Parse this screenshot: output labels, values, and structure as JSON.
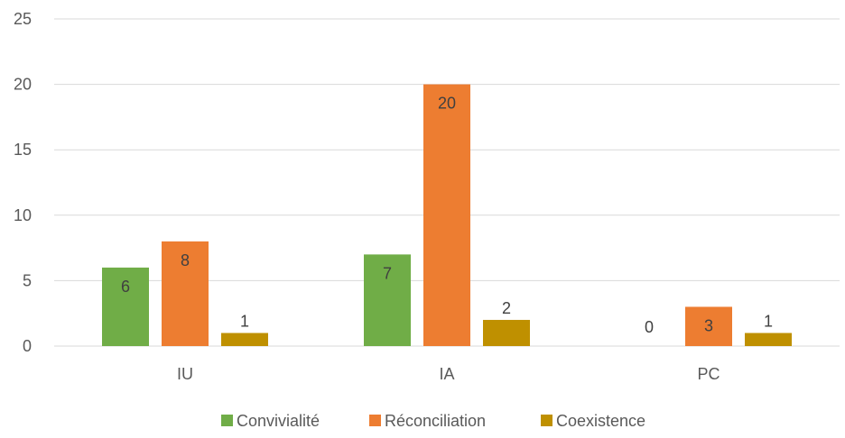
{
  "chart_data": {
    "type": "bar",
    "categories": [
      "IU",
      "IA",
      "PC"
    ],
    "series": [
      {
        "name": "Convivialité",
        "values": [
          6,
          7,
          0
        ],
        "color": "#70AD47"
      },
      {
        "name": "Réconciliation",
        "values": [
          8,
          20,
          3
        ],
        "color": "#ED7D31"
      },
      {
        "name": "Coexistence",
        "values": [
          1,
          2,
          1
        ],
        "color": "#BF9000"
      }
    ],
    "yticks": [
      0,
      5,
      10,
      15,
      20,
      25
    ],
    "ylim": [
      0,
      25
    ],
    "grid": true,
    "legend": "bottom",
    "data_labels": true
  }
}
